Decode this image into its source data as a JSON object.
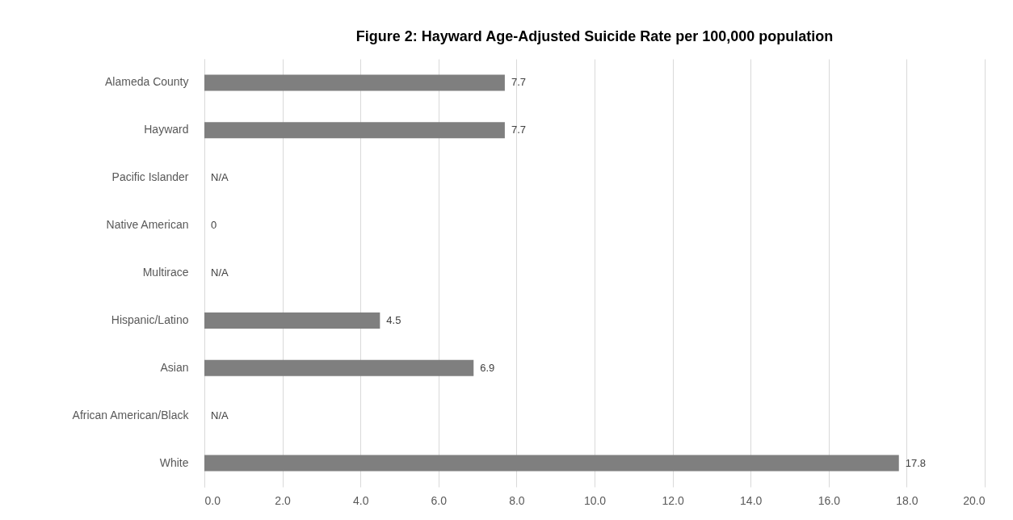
{
  "chart_data": {
    "type": "bar",
    "orientation": "horizontal",
    "title": "Figure 2: Hayward Age-Adjusted Suicide Rate per 100,000 population",
    "categories": [
      "Alameda County",
      "Hayward",
      "Pacific Islander",
      "Native American",
      "Multirace",
      "Hispanic/Latino",
      "Asian",
      "African American/Black",
      "White"
    ],
    "values": [
      7.7,
      7.7,
      null,
      0,
      null,
      4.5,
      6.9,
      null,
      17.8
    ],
    "value_labels": [
      "7.7",
      "7.7",
      "N/A",
      "0",
      "N/A",
      "4.5",
      "6.9",
      "N/A",
      "17.8"
    ],
    "color": "#7f7f7f",
    "xlim": [
      0,
      20
    ],
    "xticks": [
      {
        "value": 0,
        "label": "0.0"
      },
      {
        "value": 2,
        "label": "2.0"
      },
      {
        "value": 4,
        "label": "4.0"
      },
      {
        "value": 6,
        "label": "6.0"
      },
      {
        "value": 8,
        "label": "8.0"
      },
      {
        "value": 10,
        "label": "10.0"
      },
      {
        "value": 12,
        "label": "12.0"
      },
      {
        "value": 14,
        "label": "14.0"
      },
      {
        "value": 16,
        "label": "16.0"
      },
      {
        "value": 18,
        "label": "18.0"
      },
      {
        "value": 20,
        "label": "20.0"
      }
    ],
    "grid": "x"
  }
}
